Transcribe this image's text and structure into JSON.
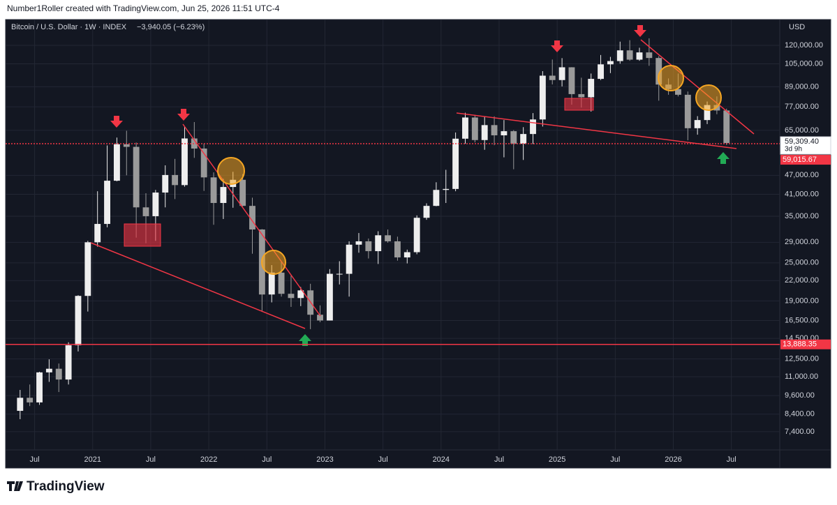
{
  "chart_data": {
    "type": "candlestick",
    "attribution": "Number1Roller created with TradingView.com, Jun 25, 2026 11:51 UTC-4",
    "title": "Bitcoin / U.S. Dollar · 1W · INDEX",
    "change": "−3,940.05 (−6.23%)",
    "currency": "USD",
    "logo": "TradingView",
    "log_scale": true,
    "grid": true,
    "up_color": "#eeeeee",
    "down_color": "#9a9a9a",
    "x": [
      "2020-05",
      "2020-06",
      "2020-07",
      "2020-08",
      "2020-09",
      "2020-10",
      "2020-11",
      "2020-12",
      "2021-01",
      "2021-02",
      "2021-03",
      "2021-04",
      "2021-05",
      "2021-06",
      "2021-07",
      "2021-08",
      "2021-09",
      "2021-10",
      "2021-11",
      "2021-12",
      "2022-01",
      "2022-02",
      "2022-03",
      "2022-04",
      "2022-05",
      "2022-06",
      "2022-07",
      "2022-08",
      "2022-09",
      "2022-10",
      "2022-11",
      "2022-12",
      "2023-01",
      "2023-02",
      "2023-03",
      "2023-04",
      "2023-05",
      "2023-06",
      "2023-07",
      "2023-08",
      "2023-09",
      "2023-10",
      "2023-11",
      "2023-12",
      "2024-01",
      "2024-02",
      "2024-03",
      "2024-04",
      "2024-05",
      "2024-06",
      "2024-07",
      "2024-08",
      "2024-09",
      "2024-10",
      "2024-11",
      "2024-12",
      "2025-01",
      "2025-02",
      "2025-03",
      "2025-04",
      "2025-05",
      "2025-06",
      "2025-07",
      "2025-08",
      "2025-09",
      "2025-10",
      "2025-11",
      "2025-12",
      "2026-01",
      "2026-02",
      "2026-03",
      "2026-04",
      "2026-05",
      "2026-06"
    ],
    "open": [
      8600,
      9450,
      9140,
      11350,
      11650,
      10780,
      13800,
      19700,
      29000,
      33100,
      45200,
      58800,
      57700,
      37300,
      35000,
      41500,
      47100,
      43800,
      61300,
      57000,
      46300,
      38500,
      43200,
      45500,
      37700,
      31800,
      19900,
      23300,
      20000,
      19400,
      20500,
      17200,
      16500,
      23100,
      23100,
      28500,
      29200,
      27200,
      30500,
      29200,
      26000,
      27000,
      34600,
      37700,
      42300,
      42600,
      61200,
      71300,
      60600,
      67500,
      62700,
      64600,
      59000,
      63300,
      70300,
      96400,
      93400,
      102400,
      84400,
      82500,
      94200,
      104600,
      107100,
      115700,
      108200,
      114000,
      109500,
      90400,
      87500,
      84000,
      66000,
      70000,
      78000,
      75000
    ],
    "high": [
      10000,
      10400,
      11400,
      12470,
      12100,
      14100,
      19800,
      29300,
      41900,
      58300,
      61700,
      64800,
      59500,
      41300,
      42300,
      50500,
      52900,
      67000,
      69000,
      59100,
      48000,
      45800,
      48200,
      47400,
      40000,
      31900,
      24600,
      25200,
      22800,
      21000,
      21500,
      18400,
      23900,
      25300,
      29200,
      31000,
      29800,
      31400,
      31800,
      30200,
      27500,
      35200,
      38400,
      44700,
      48900,
      64000,
      73800,
      72700,
      71900,
      71900,
      70000,
      65100,
      66500,
      73600,
      99600,
      108300,
      109400,
      102500,
      95000,
      97900,
      111900,
      110400,
      123200,
      124500,
      117900,
      126200,
      111000,
      94500,
      97900,
      86000,
      72000,
      80000,
      83000,
      76000
    ],
    "low": [
      8100,
      8900,
      8980,
      10600,
      9850,
      10400,
      13200,
      17600,
      28100,
      32300,
      45000,
      47000,
      30000,
      28800,
      29300,
      37300,
      39600,
      43300,
      53300,
      42000,
      32900,
      34300,
      37200,
      37600,
      26700,
      17600,
      18800,
      19600,
      18200,
      18300,
      15500,
      16300,
      16500,
      21400,
      19600,
      26900,
      25800,
      24800,
      28900,
      25400,
      24900,
      26600,
      34100,
      37600,
      38500,
      41900,
      59000,
      59600,
      56500,
      58400,
      53500,
      49100,
      52500,
      58900,
      66800,
      90500,
      89200,
      78200,
      76600,
      74400,
      93400,
      98200,
      105100,
      107300,
      107300,
      103500,
      80500,
      84000,
      83000,
      60500,
      63000,
      68000,
      73000,
      58500
    ],
    "close": [
      9450,
      9140,
      11350,
      11650,
      10780,
      13800,
      19700,
      29000,
      33100,
      45200,
      58800,
      57700,
      37300,
      35000,
      41500,
      47100,
      43800,
      61300,
      57000,
      46300,
      38500,
      43200,
      45500,
      37700,
      31800,
      19900,
      23300,
      20000,
      19400,
      20500,
      17200,
      16500,
      23100,
      23100,
      28500,
      29200,
      27200,
      30500,
      29200,
      26000,
      27000,
      34600,
      37700,
      42300,
      42600,
      61200,
      71300,
      60600,
      67500,
      62700,
      64600,
      59000,
      63300,
      70300,
      96400,
      93400,
      102400,
      84400,
      82500,
      94200,
      104600,
      107100,
      115700,
      108200,
      114000,
      109500,
      90400,
      87500,
      84000,
      66000,
      70000,
      78000,
      75000,
      59309.4
    ],
    "xlim": [
      "2020-04",
      "2026-12"
    ],
    "xticks": [
      {
        "value": "2020-07",
        "label": "Jul"
      },
      {
        "value": "2021-01",
        "label": "2021"
      },
      {
        "value": "2021-07",
        "label": "Jul"
      },
      {
        "value": "2022-01",
        "label": "2022"
      },
      {
        "value": "2022-07",
        "label": "Jul"
      },
      {
        "value": "2023-01",
        "label": "2023"
      },
      {
        "value": "2023-07",
        "label": "Jul"
      },
      {
        "value": "2024-01",
        "label": "2024"
      },
      {
        "value": "2024-07",
        "label": "Jul"
      },
      {
        "value": "2025-01",
        "label": "2025"
      },
      {
        "value": "2025-07",
        "label": "Jul"
      },
      {
        "value": "2026-01",
        "label": "2026"
      },
      {
        "value": "2026-07",
        "label": "Jul"
      }
    ],
    "ylim": [
      6490,
      144500
    ],
    "yticks": [
      {
        "value": 120000,
        "label": "120,000.00"
      },
      {
        "value": 105000,
        "label": "105,000.00"
      },
      {
        "value": 89000,
        "label": "89,000.00"
      },
      {
        "value": 77000,
        "label": "77,000.00"
      },
      {
        "value": 65000,
        "label": "65,000.00"
      },
      {
        "value": 47000,
        "label": "47,000.00"
      },
      {
        "value": 41000,
        "label": "41,000.00"
      },
      {
        "value": 35000,
        "label": "35,000.00"
      },
      {
        "value": 29000,
        "label": "29,000.00"
      },
      {
        "value": 25000,
        "label": "25,000.00"
      },
      {
        "value": 22000,
        "label": "22,000.00"
      },
      {
        "value": 19000,
        "label": "19,000.00"
      },
      {
        "value": 16500,
        "label": "16,500.00"
      },
      {
        "value": 14500,
        "label": "14,500.00"
      },
      {
        "value": 12500,
        "label": "12,500.00"
      },
      {
        "value": 11000,
        "label": "11,000.00"
      },
      {
        "value": 9600,
        "label": "9,600.00"
      },
      {
        "value": 8400,
        "label": "8,400.00"
      },
      {
        "value": 7400,
        "label": "7,400.00"
      }
    ],
    "last_price": {
      "value": 59309.4,
      "label": "59,309.40",
      "countdown": "3d 9h"
    },
    "price_lines": [
      {
        "value": 59015.67,
        "label": "59,015.67",
        "color": "#f23645",
        "style": "dotted"
      },
      {
        "value": 13888.35,
        "label": "13,888.35",
        "color": "#f23645",
        "style": "solid"
      }
    ]
  }
}
